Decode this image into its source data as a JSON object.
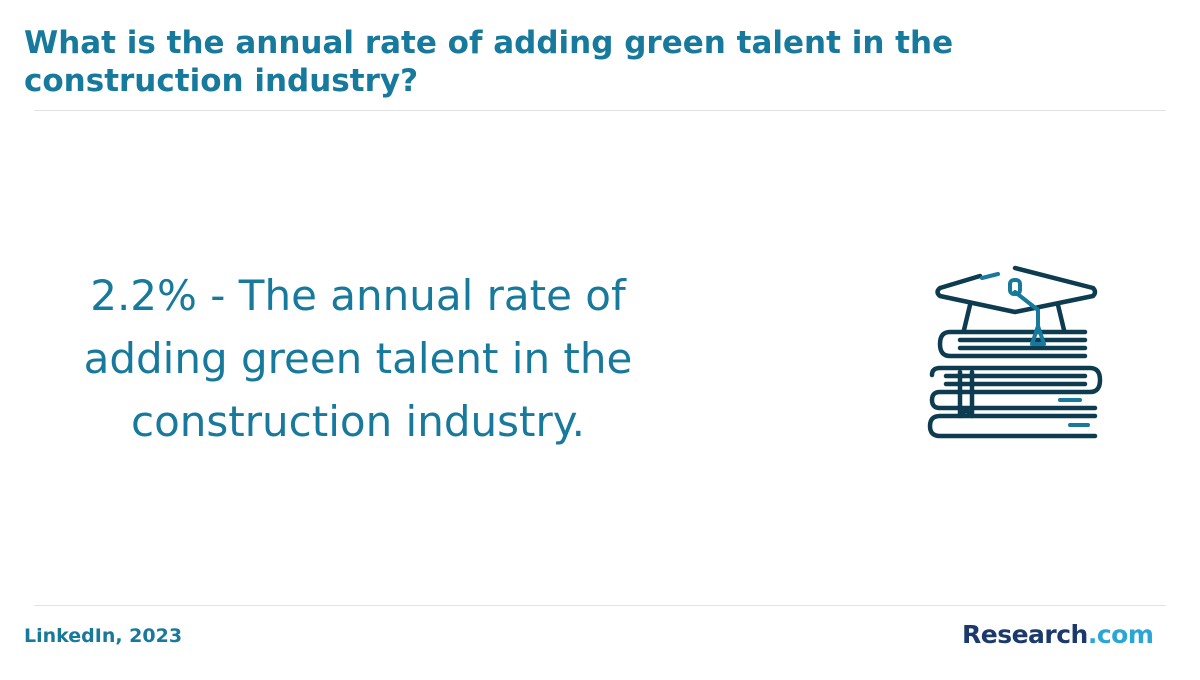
{
  "header": {
    "title": "What is the annual rate of adding green talent in the construction industry?"
  },
  "statement": {
    "text": "2.2% - The annual rate of adding green talent in the construction industry."
  },
  "footer": {
    "source": "LinkedIn, 2023",
    "brand": {
      "name": "Research",
      "suffix": ".com"
    }
  }
}
